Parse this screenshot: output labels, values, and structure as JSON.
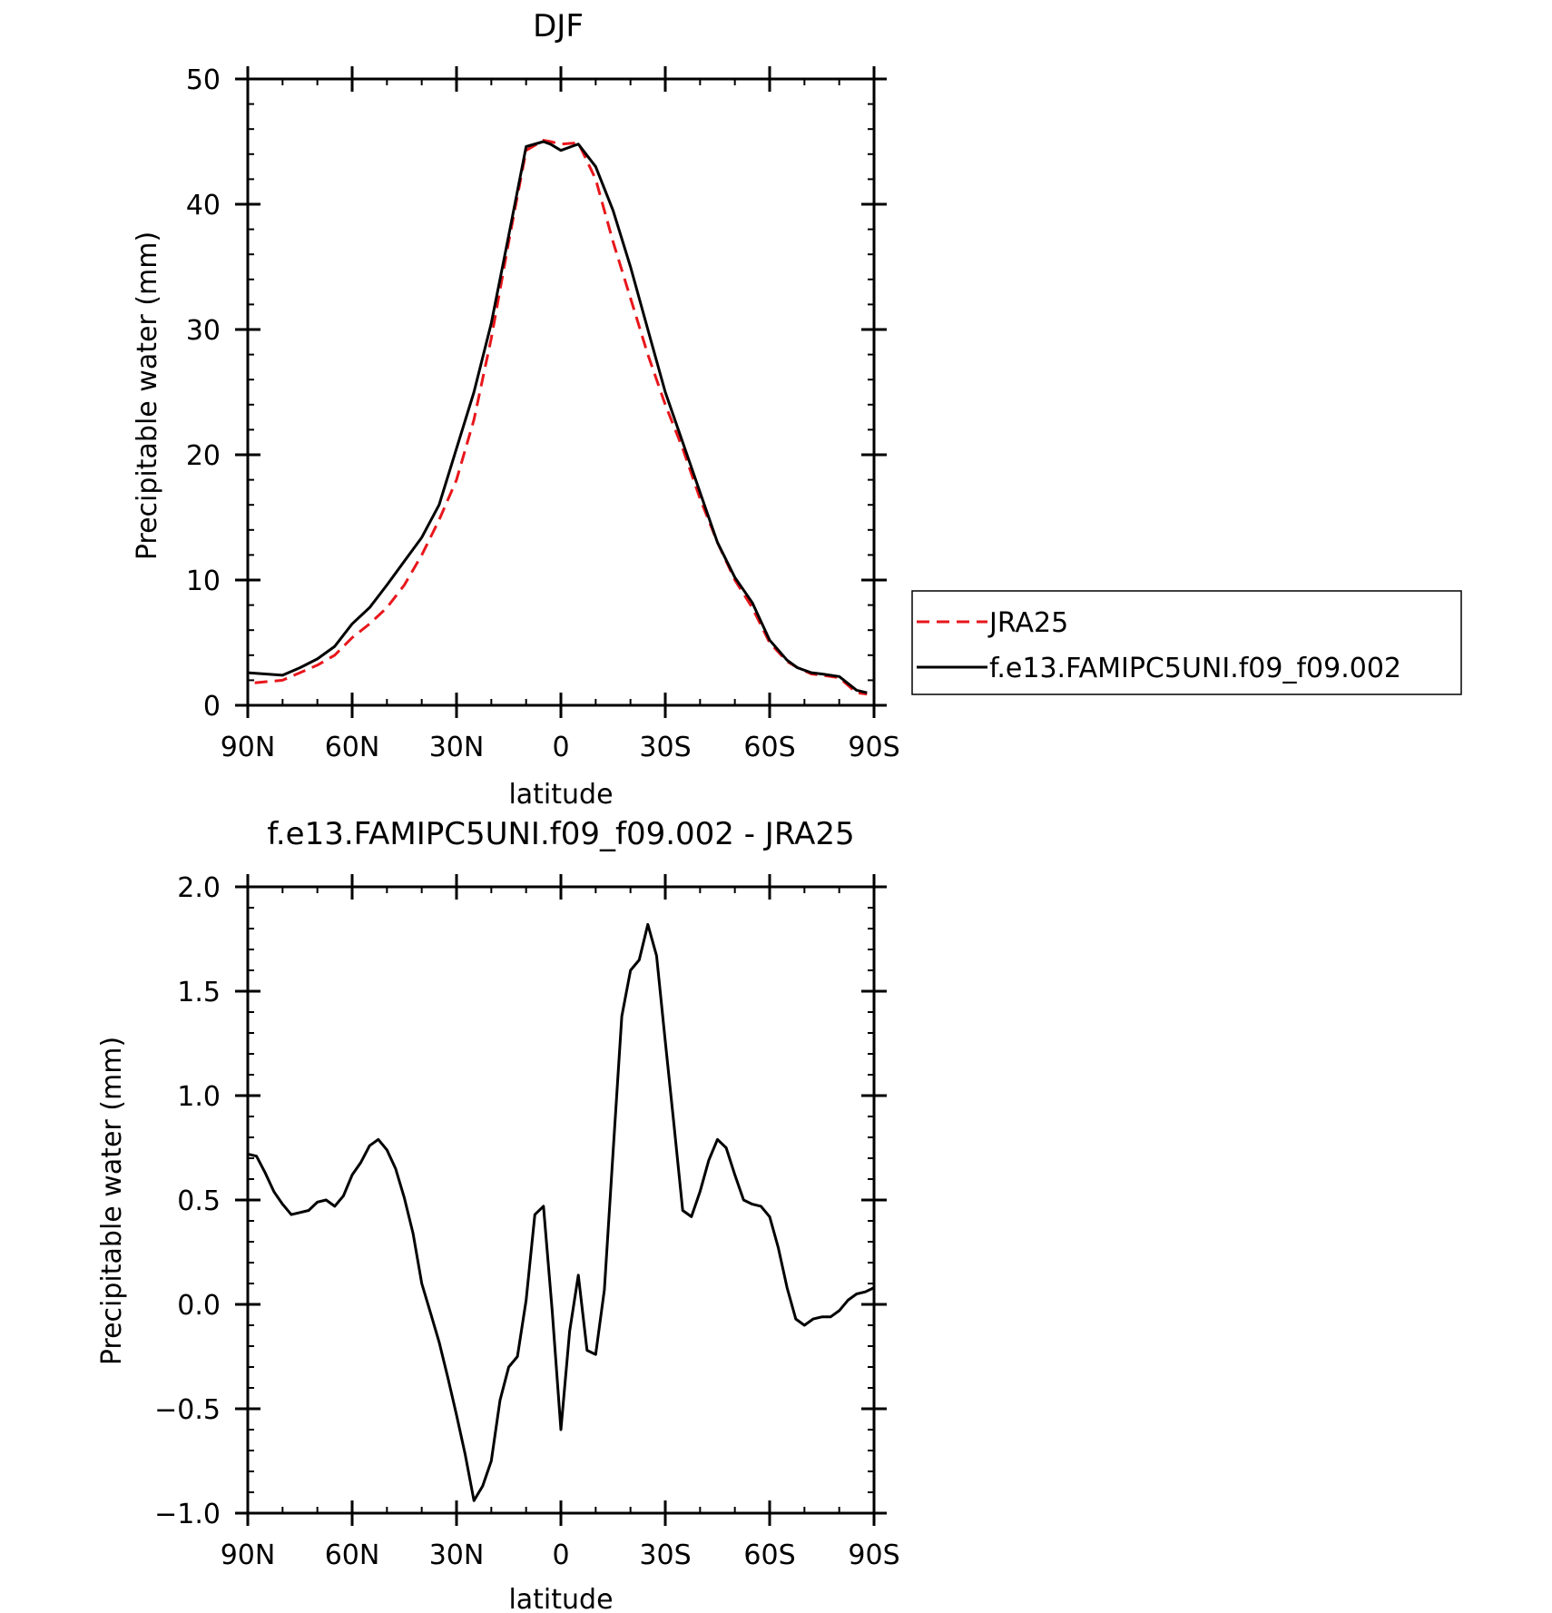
{
  "chart_data": [
    {
      "type": "line",
      "title": "DJF",
      "xlabel": "latitude",
      "ylabel": "Precipitable water (mm)",
      "xlim": [
        90,
        -90
      ],
      "ylim": [
        0,
        50
      ],
      "x_ticks": [
        90,
        60,
        30,
        0,
        -30,
        -60,
        -90
      ],
      "x_tick_labels": [
        "90N",
        "60N",
        "30N",
        "0",
        "30S",
        "60S",
        "90S"
      ],
      "y_ticks": [
        0,
        10,
        20,
        30,
        40,
        50
      ],
      "y_tick_labels": [
        "0",
        "10",
        "20",
        "30",
        "40",
        "50"
      ],
      "legend_position": "right",
      "series": [
        {
          "name": "JRA25",
          "color": "#e8161b",
          "dash": "dashed",
          "x": [
            88,
            80,
            75,
            70,
            65,
            60,
            55,
            50,
            45,
            40,
            35,
            30,
            25,
            20,
            15,
            10,
            5,
            3,
            0,
            -5,
            -10,
            -15,
            -20,
            -25,
            -30,
            -35,
            -40,
            -45,
            -50,
            -55,
            -60,
            -65,
            -68,
            -72,
            -75,
            -80,
            -85,
            -88
          ],
          "y": [
            1.8,
            2.0,
            2.6,
            3.2,
            4.0,
            5.4,
            6.5,
            7.8,
            9.6,
            12.0,
            14.8,
            18.0,
            22.8,
            29.3,
            37.0,
            44.3,
            45.1,
            45.0,
            44.8,
            44.9,
            42.0,
            37.0,
            32.5,
            28.0,
            24.0,
            20.5,
            16.5,
            13.0,
            10.0,
            7.8,
            5.0,
            3.5,
            3.0,
            2.5,
            2.4,
            2.2,
            1.0,
            0.9
          ]
        },
        {
          "name": "f.e13.FAMIPC5UNI.f09_f09.002",
          "color": "#000000",
          "dash": "solid",
          "x": [
            90,
            85,
            80,
            75,
            70,
            65,
            60,
            55,
            50,
            45,
            40,
            35,
            30,
            25,
            20,
            15,
            10,
            5,
            3,
            0,
            -3,
            -5,
            -10,
            -15,
            -20,
            -25,
            -30,
            -35,
            -40,
            -45,
            -50,
            -55,
            -60,
            -65,
            -68,
            -72,
            -75,
            -80,
            -85,
            -88
          ],
          "y": [
            2.6,
            2.5,
            2.4,
            3.0,
            3.7,
            4.7,
            6.5,
            7.8,
            9.6,
            11.5,
            13.4,
            16.0,
            20.5,
            25.0,
            30.5,
            37.5,
            44.6,
            45.0,
            44.8,
            44.3,
            44.6,
            44.8,
            43.0,
            39.5,
            35.0,
            30.0,
            25.0,
            21.0,
            17.0,
            13.0,
            10.2,
            8.2,
            5.2,
            3.6,
            3.0,
            2.6,
            2.5,
            2.3,
            1.2,
            1.0
          ]
        }
      ]
    },
    {
      "type": "line",
      "title": "f.e13.FAMIPC5UNI.f09_f09.002 - JRA25",
      "xlabel": "latitude",
      "ylabel": "Precipitable water (mm)",
      "xlim": [
        90,
        -90
      ],
      "ylim": [
        -1.0,
        2.0
      ],
      "x_ticks": [
        90,
        60,
        30,
        0,
        -30,
        -60,
        -90
      ],
      "x_tick_labels": [
        "90N",
        "60N",
        "30N",
        "0",
        "30S",
        "60S",
        "90S"
      ],
      "y_ticks": [
        -1.0,
        -0.5,
        0.0,
        0.5,
        1.0,
        1.5,
        2.0
      ],
      "y_tick_labels": [
        "−1.0",
        "−0.5",
        "0.0",
        "0.5",
        "1.0",
        "1.5",
        "2.0"
      ],
      "series": [
        {
          "color": "#000000",
          "dash": "solid",
          "x": [
            90,
            87.5,
            85,
            82.5,
            80,
            77.5,
            75,
            72.5,
            70,
            67.5,
            65,
            62.5,
            60,
            57.5,
            55,
            52.5,
            50,
            47.5,
            45,
            42.5,
            40,
            37.5,
            35,
            32.5,
            30,
            27.5,
            25,
            22.5,
            20,
            17.5,
            15,
            12.5,
            10,
            7.5,
            5,
            2.5,
            0,
            -2.5,
            -5,
            -7.5,
            -10,
            -12.5,
            -15,
            -17.5,
            -20,
            -22.5,
            -25,
            -27.5,
            -30,
            -32.5,
            -35,
            -37.5,
            -40,
            -42.5,
            -45,
            -47.5,
            -50,
            -52.5,
            -55,
            -57.5,
            -60,
            -62.5,
            -65,
            -67.5,
            -70,
            -72.5,
            -75,
            -77.5,
            -80,
            -82.5,
            -85,
            -87.5,
            -90
          ],
          "y": [
            0.72,
            0.71,
            0.63,
            0.54,
            0.48,
            0.43,
            0.44,
            0.45,
            0.49,
            0.5,
            0.47,
            0.52,
            0.62,
            0.68,
            0.76,
            0.79,
            0.74,
            0.65,
            0.51,
            0.34,
            0.1,
            -0.04,
            -0.18,
            -0.35,
            -0.53,
            -0.72,
            -0.94,
            -0.87,
            -0.75,
            -0.46,
            -0.3,
            -0.25,
            0.02,
            0.43,
            0.47,
            -0.03,
            -0.6,
            -0.13,
            0.14,
            -0.22,
            -0.24,
            0.07,
            0.73,
            1.38,
            1.6,
            1.65,
            1.82,
            1.67,
            1.26,
            0.86,
            0.45,
            0.42,
            0.54,
            0.69,
            0.79,
            0.75,
            0.62,
            0.5,
            0.48,
            0.47,
            0.42,
            0.27,
            0.08,
            -0.07,
            -0.1,
            -0.07,
            -0.06,
            -0.06,
            -0.03,
            0.02,
            0.05,
            0.06,
            0.08
          ]
        }
      ]
    }
  ]
}
